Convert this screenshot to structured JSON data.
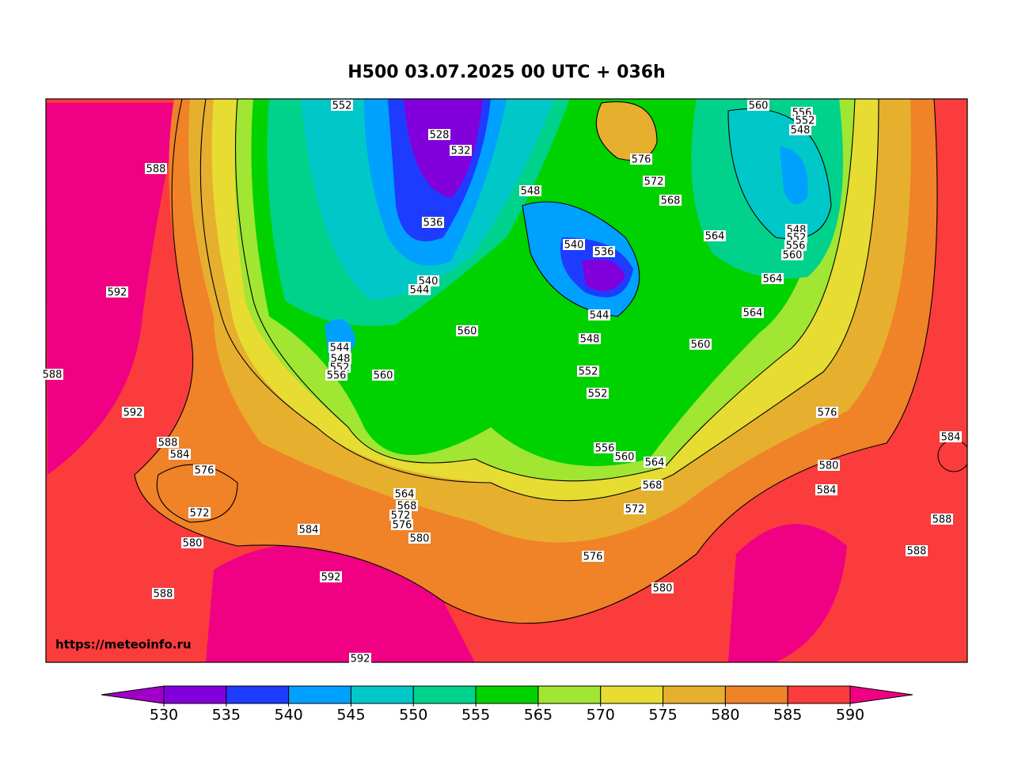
{
  "title": "H500  03.07.2025 00 UTC + 036h",
  "watermark": "https://meteoinfo.ru",
  "colorbar": {
    "ticks": [
      530,
      535,
      540,
      545,
      550,
      555,
      565,
      570,
      575,
      580,
      585,
      590
    ],
    "colors": [
      "#a000c8",
      "#8200dc",
      "#1e3cff",
      "#00a0ff",
      "#00c8c8",
      "#00d28c",
      "#00d200",
      "#a0e632",
      "#e6dc32",
      "#e6af2d",
      "#f08228",
      "#fa3c3c",
      "#f00082"
    ]
  },
  "contour_labels": [
    552,
    528,
    532,
    536,
    540,
    544,
    548,
    540,
    536,
    544,
    548,
    552,
    552,
    556,
    560,
    564,
    568,
    572,
    576,
    572,
    568,
    564,
    564,
    564,
    560,
    560,
    556,
    552,
    548,
    548,
    552,
    556,
    560,
    560,
    560,
    544,
    548,
    552,
    556,
    588,
    592,
    588,
    592,
    588,
    584,
    576,
    572,
    580,
    588,
    584,
    592,
    592,
    564,
    568,
    572,
    576,
    580,
    576,
    580,
    576,
    580,
    584,
    588,
    588,
    584
  ]
}
